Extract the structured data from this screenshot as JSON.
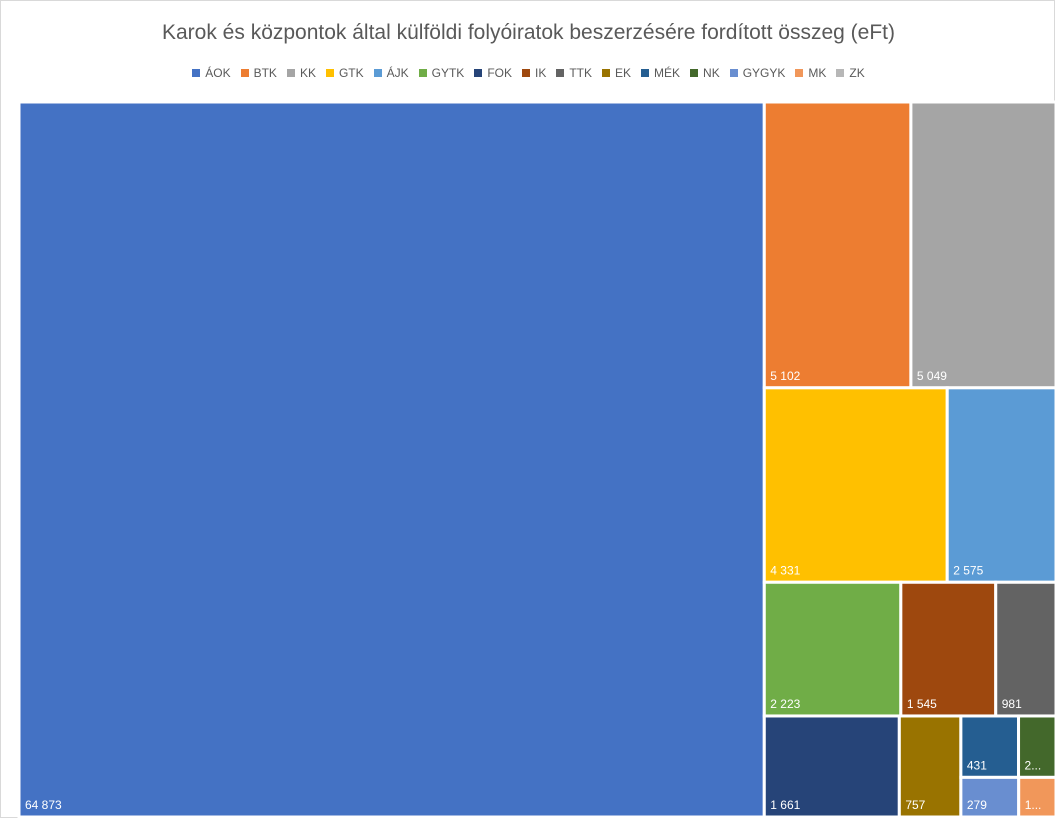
{
  "chart_data": {
    "type": "treemap",
    "title": "Karok és központok által külföldi folyóiratok beszerzésére fordított összeg (eFt)",
    "legend_position": "top",
    "items": [
      {
        "name": "ÁOK",
        "value": 64873,
        "label": "64 873",
        "color": "#4472c4"
      },
      {
        "name": "BTK",
        "value": 5102,
        "label": "5 102",
        "color": "#ed7d31"
      },
      {
        "name": "KK",
        "value": 5049,
        "label": "5 049",
        "color": "#a5a5a5"
      },
      {
        "name": "GTK",
        "value": 4331,
        "label": "4 331",
        "color": "#ffc000"
      },
      {
        "name": "ÁJK",
        "value": 2575,
        "label": "2 575",
        "color": "#5b9bd5"
      },
      {
        "name": "GYTK",
        "value": 2223,
        "label": "2 223",
        "color": "#70ad47"
      },
      {
        "name": "IK",
        "value": 1545,
        "label": "1 545",
        "color": "#9e480e"
      },
      {
        "name": "TTK",
        "value": 981,
        "label": "981",
        "color": "#636363"
      },
      {
        "name": "FOK",
        "value": 1661,
        "label": "1 661",
        "color": "#264478"
      },
      {
        "name": "EK",
        "value": 757,
        "label": "757",
        "color": "#997300"
      },
      {
        "name": "MÉK",
        "value": 431,
        "label": "431",
        "color": "#255e91"
      },
      {
        "name": "NK",
        "value": 280,
        "label": "2...",
        "color": "#43682b"
      },
      {
        "name": "GYGYK",
        "value": 279,
        "label": "279",
        "color": "#698ed0"
      },
      {
        "name": "MK",
        "value": 180,
        "label": "1...",
        "color": "#f1975a"
      }
    ],
    "legend": [
      "ÁOK",
      "BTK",
      "KK",
      "GTK",
      "ÁJK",
      "GYTK",
      "FOK",
      "IK",
      "TTK",
      "EK",
      "MÉK",
      "NK",
      "GYGYK",
      "MK",
      "ZK"
    ],
    "legend_colors": {
      "ÁOK": "#4472c4",
      "BTK": "#ed7d31",
      "KK": "#a5a5a5",
      "GTK": "#ffc000",
      "ÁJK": "#5b9bd5",
      "GYTK": "#70ad47",
      "FOK": "#264478",
      "IK": "#9e480e",
      "TTK": "#636363",
      "EK": "#997300",
      "MÉK": "#255e91",
      "NK": "#43682b",
      "GYGYK": "#698ed0",
      "MK": "#f1975a",
      "ZK": "#b7b7b7"
    }
  }
}
